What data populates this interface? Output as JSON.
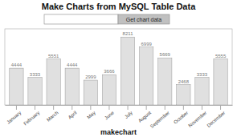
{
  "chart_data": {
    "type": "bar",
    "title": "Make Charts from MySQL Table Data",
    "xlabel": "makechart",
    "categories": [
      "January",
      "February",
      "March",
      "April",
      "May",
      "June",
      "July",
      "August",
      "September",
      "October",
      "November",
      "December"
    ],
    "values": [
      4444,
      3333,
      5551,
      4444,
      2999,
      3666,
      8211,
      6999,
      5669,
      2468,
      3333,
      5555
    ],
    "color": "#e0e0e0",
    "ylim": [
      0,
      9200
    ],
    "grid": false,
    "data_labels": true,
    "tick_labels": "x",
    "annotations": [
      "Get chart data"
    ]
  }
}
